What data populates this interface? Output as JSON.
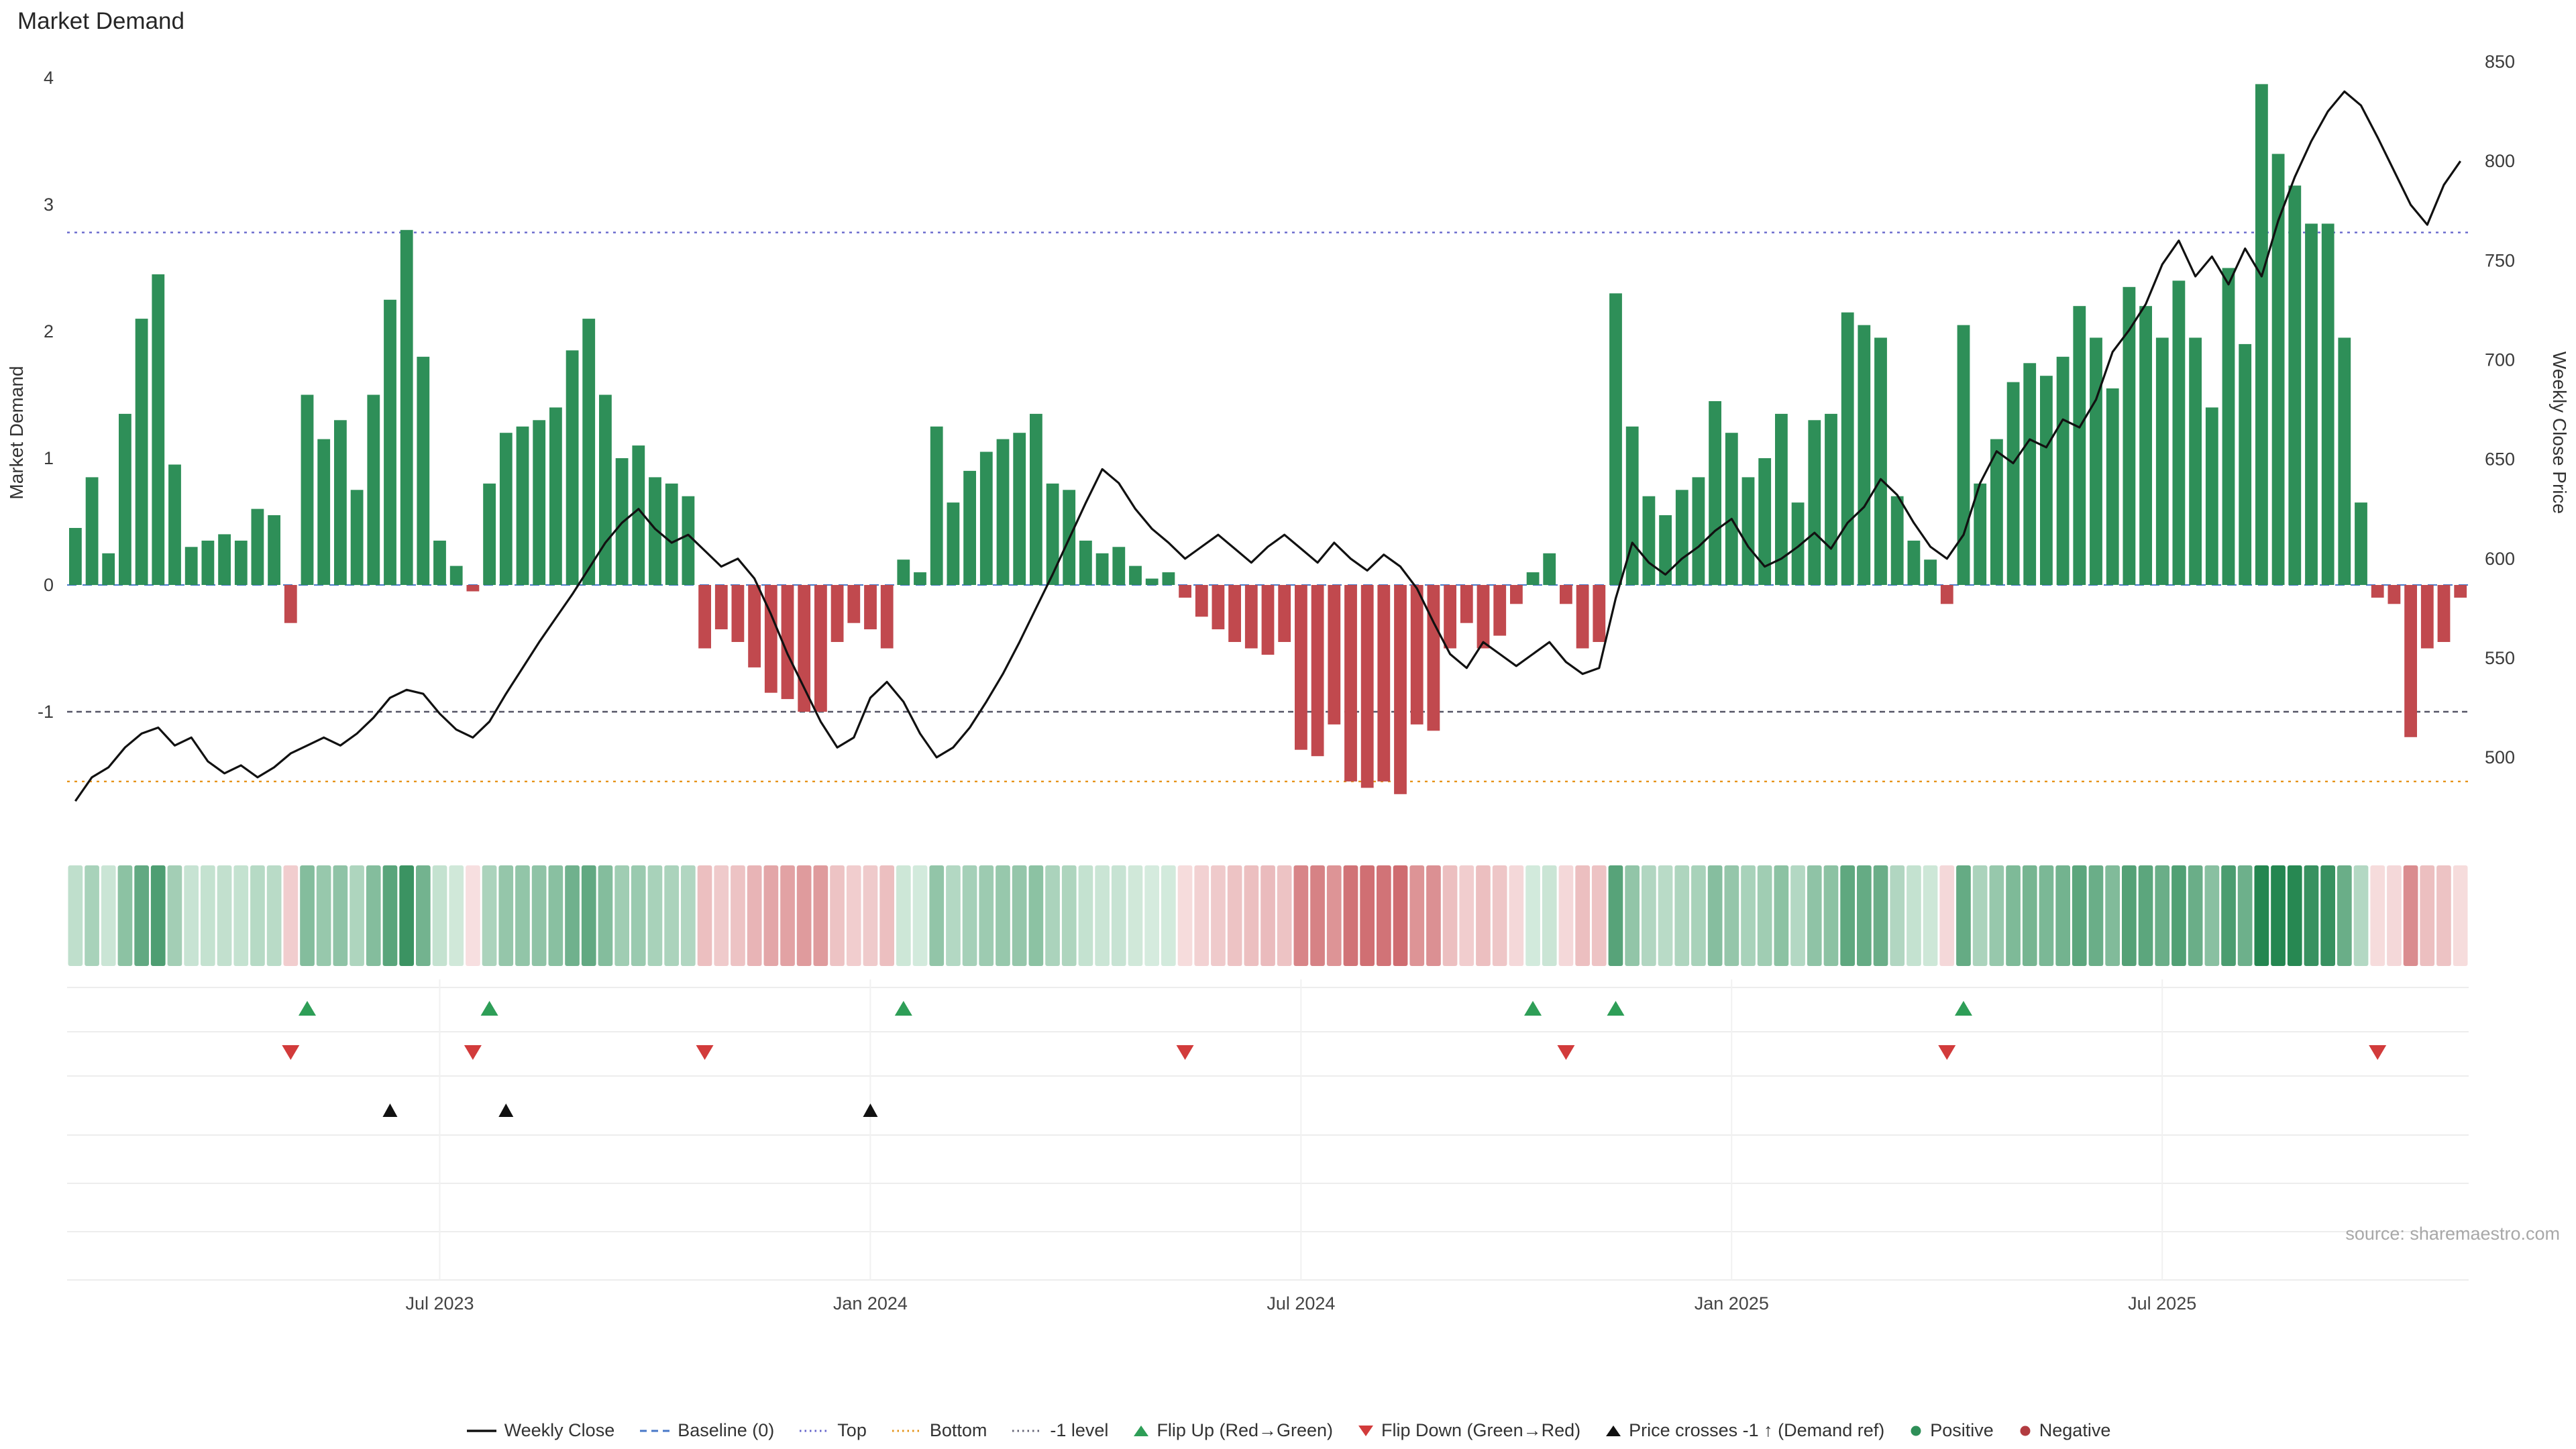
{
  "title": "Market Demand",
  "source": "source: sharemaestro.com",
  "axes": {
    "left_label": "Market Demand",
    "right_label": "Weekly Close Price",
    "left_ticks": [
      4,
      3,
      2,
      1,
      0,
      -1
    ],
    "right_ticks": [
      850,
      800,
      750,
      700,
      650,
      600,
      550,
      500
    ]
  },
  "colors": {
    "positive": "#2e8f58",
    "negative": "#c1494e",
    "line": "#111111",
    "baseline": "#4878c8",
    "top": "#6666cc",
    "bottom": "#e6941a",
    "minus1": "#555566",
    "flip_up": "#2e9e57",
    "flip_down": "#d23b3b",
    "price_cross": "#111111"
  },
  "chart_data": {
    "type": "bar+line",
    "x_unit": "week",
    "x_tick_labels": [
      "Jul 2023",
      "Jan 2024",
      "Jul 2024",
      "Jan 2025",
      "Jul 2025"
    ],
    "x_tick_weeks": [
      22,
      48,
      74,
      100,
      126
    ],
    "ylim_left": [
      -1.8,
      4.2
    ],
    "ylim_right": [
      480,
      850
    ],
    "levels": {
      "baseline": 0,
      "top": 2.78,
      "bottom": -1.55,
      "minus1": -1
    },
    "series": [
      {
        "name": "Market Demand",
        "type": "bar",
        "axis": "left",
        "values": [
          0.45,
          0.85,
          0.25,
          1.35,
          2.1,
          2.45,
          0.95,
          0.3,
          0.35,
          0.4,
          0.35,
          0.6,
          0.55,
          -0.3,
          1.5,
          1.15,
          1.3,
          0.75,
          1.5,
          2.25,
          2.8,
          1.8,
          0.35,
          0.15,
          -0.05,
          0.8,
          1.2,
          1.25,
          1.3,
          1.4,
          1.85,
          2.1,
          1.5,
          1.0,
          1.1,
          0.85,
          0.8,
          0.7,
          -0.5,
          -0.35,
          -0.45,
          -0.65,
          -0.85,
          -0.9,
          -1.0,
          -1.0,
          -0.45,
          -0.3,
          -0.35,
          -0.5,
          0.2,
          0.1,
          1.25,
          0.65,
          0.9,
          1.05,
          1.15,
          1.2,
          1.35,
          0.8,
          0.75,
          0.35,
          0.25,
          0.3,
          0.15,
          0.05,
          0.1,
          -0.1,
          -0.25,
          -0.35,
          -0.45,
          -0.5,
          -0.55,
          -0.45,
          -1.3,
          -1.35,
          -1.1,
          -1.55,
          -1.6,
          -1.55,
          -1.65,
          -1.1,
          -1.15,
          -0.5,
          -0.3,
          -0.5,
          -0.4,
          -0.15,
          0.1,
          0.25,
          -0.15,
          -0.5,
          -0.45,
          2.3,
          1.25,
          0.7,
          0.55,
          0.75,
          0.85,
          1.45,
          1.2,
          0.85,
          1.0,
          1.35,
          0.65,
          1.3,
          1.35,
          2.15,
          2.05,
          1.95,
          0.7,
          0.35,
          0.2,
          -0.15,
          2.05,
          0.8,
          1.15,
          1.6,
          1.75,
          1.65,
          1.8,
          2.2,
          1.95,
          1.55,
          2.35,
          2.2,
          1.95,
          2.4,
          1.95,
          1.4,
          2.5,
          1.9,
          3.95,
          3.4,
          3.15,
          2.85,
          2.85,
          1.95,
          0.65,
          -0.1,
          -0.15,
          -1.2,
          -0.5,
          -0.45,
          -0.1
        ]
      },
      {
        "name": "Weekly Close",
        "type": "line",
        "axis": "right",
        "values": [
          478,
          490,
          495,
          505,
          512,
          515,
          506,
          510,
          498,
          492,
          496,
          490,
          495,
          502,
          506,
          510,
          506,
          512,
          520,
          530,
          534,
          532,
          522,
          514,
          510,
          518,
          532,
          545,
          558,
          570,
          582,
          595,
          608,
          618,
          625,
          615,
          608,
          612,
          604,
          596,
          600,
          590,
          572,
          552,
          535,
          518,
          505,
          510,
          530,
          538,
          528,
          512,
          500,
          505,
          515,
          528,
          542,
          558,
          575,
          592,
          610,
          628,
          645,
          638,
          625,
          615,
          608,
          600,
          606,
          612,
          605,
          598,
          606,
          612,
          605,
          598,
          608,
          600,
          594,
          602,
          596,
          585,
          568,
          552,
          545,
          558,
          552,
          546,
          552,
          558,
          548,
          542,
          545,
          580,
          608,
          598,
          592,
          600,
          606,
          614,
          620,
          606,
          596,
          600,
          606,
          613,
          605,
          618,
          626,
          640,
          632,
          618,
          606,
          600,
          612,
          638,
          654,
          648,
          660,
          656,
          670,
          666,
          680,
          704,
          715,
          728,
          748,
          760,
          742,
          752,
          738,
          756,
          742,
          770,
          792,
          810,
          825,
          835,
          828,
          812,
          795,
          778,
          768,
          788,
          800
        ]
      }
    ],
    "markers": {
      "flip_up_weeks": [
        14,
        25,
        50,
        88,
        93,
        114
      ],
      "flip_down_weeks": [
        13,
        24,
        38,
        67,
        90,
        113,
        139
      ],
      "price_cross_weeks": [
        19,
        26,
        48
      ]
    }
  },
  "legend": [
    {
      "key": "weekly-close",
      "label": "Weekly Close",
      "type": "line",
      "color": "#111111"
    },
    {
      "key": "baseline",
      "label": "Baseline (0)",
      "type": "dashed",
      "color": "#4878c8"
    },
    {
      "key": "top",
      "label": "Top",
      "type": "dotted",
      "color": "#6666cc"
    },
    {
      "key": "bottom",
      "label": "Bottom",
      "type": "dotted",
      "color": "#e6941a"
    },
    {
      "key": "minus1-level",
      "label": "-1 level",
      "type": "dotted",
      "color": "#666677"
    },
    {
      "key": "flip-up",
      "label": "Flip Up (Red→Green)",
      "type": "tri-up",
      "color": "#2e9e57"
    },
    {
      "key": "flip-down",
      "label": "Flip Down (Green→Red)",
      "type": "tri-down",
      "color": "#d23b3b"
    },
    {
      "key": "price-cross",
      "label": "Price crosses -1 ↑ (Demand ref)",
      "type": "tri-up",
      "color": "#111111"
    },
    {
      "key": "positive",
      "label": "Positive",
      "type": "dot",
      "color": "#2e8f58"
    },
    {
      "key": "negative",
      "label": "Negative",
      "type": "dot",
      "color": "#b23b40"
    }
  ]
}
